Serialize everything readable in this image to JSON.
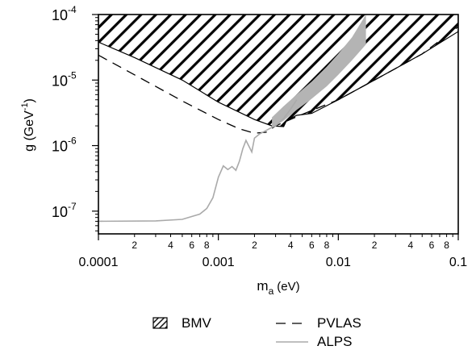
{
  "chart_data": {
    "type": "line",
    "title": "",
    "x_scale": "log",
    "y_scale": "log",
    "xlim": [
      0.0001,
      0.1
    ],
    "ylim": [
      4.5e-08,
      0.0001
    ],
    "xlabel": {
      "base": "m",
      "sub": "a",
      "unit": "(eV)"
    },
    "ylabel": {
      "base": "g (GeV",
      "sup": "-1",
      "close": ")"
    },
    "x_major_ticks": [
      {
        "value": 0.0001,
        "label": "0.0001"
      },
      {
        "value": 0.001,
        "label": "0.001"
      },
      {
        "value": 0.01,
        "label": "0.01"
      },
      {
        "value": 0.1,
        "label": "0.1"
      }
    ],
    "x_minor_labels": [
      "2",
      "4",
      "6",
      "8"
    ],
    "y_major_ticks": [
      {
        "value": 1e-07,
        "mant": "10",
        "exp": "-7"
      },
      {
        "value": 1e-06,
        "mant": "10",
        "exp": "-6"
      },
      {
        "value": 1e-05,
        "mant": "10",
        "exp": "-5"
      },
      {
        "value": 0.0001,
        "mant": "10",
        "exp": "-4"
      }
    ],
    "series": [
      {
        "name": "BMV",
        "style": "hatched-region",
        "color": "#000000",
        "x": [
          0.0001,
          0.0002,
          0.0005,
          0.001,
          0.002,
          0.0028,
          0.0035,
          0.0037,
          0.0045,
          0.006,
          0.01,
          0.02,
          0.05,
          0.1
        ],
        "y": [
          3.8e-05,
          2.2e-05,
          1e-05,
          4.6e-06,
          2.5e-06,
          2e-06,
          1.95e-06,
          2.4e-06,
          2.9e-06,
          3.1e-06,
          5e-06,
          1e-05,
          2.5e-05,
          5.5e-05
        ]
      },
      {
        "name": "PVLAS",
        "style": "dashed",
        "color": "#000000",
        "x": [
          0.0001,
          0.0002,
          0.0005,
          0.001,
          0.0015,
          0.002,
          0.0025,
          0.003,
          0.005,
          0.01,
          0.02,
          0.05,
          0.1
        ],
        "y": [
          2.4e-05,
          1.2e-05,
          4.8e-06,
          2.5e-06,
          1.8e-06,
          1.55e-06,
          1.6e-06,
          2e-06,
          3e-06,
          5e-06,
          1e-05,
          2.5e-05,
          6.5e-05
        ]
      },
      {
        "name": "ALPS",
        "style": "solid",
        "color": "#aaaaaa",
        "x": [
          0.0001,
          0.0003,
          0.0005,
          0.0007,
          0.0008,
          0.0009,
          0.001,
          0.0011,
          0.0012,
          0.0013,
          0.0014,
          0.0015,
          0.0016,
          0.0017,
          0.0019,
          0.002,
          0.0022,
          0.0025,
          0.0028,
          0.003,
          0.0035,
          0.004,
          0.0045
        ],
        "y": [
          7e-08,
          7.1e-08,
          7.5e-08,
          9e-08,
          1.1e-07,
          1.6e-07,
          3.3e-07,
          4.9e-07,
          4.3e-07,
          4.8e-07,
          4.2e-07,
          5.8e-07,
          9e-07,
          1.2e-06,
          8e-07,
          1.3e-06,
          1.5e-06,
          1.7e-06,
          1.9e-06,
          2e-06,
          2.6e-06,
          3.6e-06,
          5e-06
        ]
      },
      {
        "name": "",
        "style": "gray-band",
        "color": "#b4b4b4",
        "x": [
          0.0028,
          0.0035,
          0.0045,
          0.006,
          0.008,
          0.01,
          0.013,
          0.017
        ],
        "y_low": [
          1.85e-06,
          2.4e-06,
          3.5e-06,
          5.2e-06,
          8e-06,
          1.2e-05,
          2e-05,
          3.5e-05
        ],
        "y_high": [
          2.7e-06,
          4e-06,
          6e-06,
          9.5e-06,
          1.6e-05,
          2.5e-05,
          4.5e-05,
          0.0001
        ]
      }
    ],
    "legend": {
      "placement": "bottom",
      "items": [
        {
          "label": "BMV",
          "symbol": "hatched-box"
        },
        {
          "label": "PVLAS",
          "symbol": "dashed-line"
        },
        {
          "label": "ALPS",
          "symbol": "gray-line"
        }
      ]
    },
    "grid": false
  }
}
